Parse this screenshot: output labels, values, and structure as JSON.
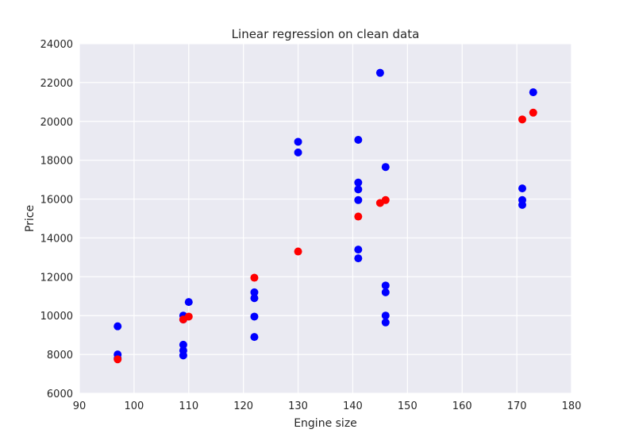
{
  "chart_data": {
    "type": "scatter",
    "title": "Linear regression on clean data",
    "xlabel": "Engine size",
    "ylabel": "Price",
    "xlim": [
      90,
      180
    ],
    "ylim": [
      6000,
      24000
    ],
    "xticks": [
      90,
      100,
      110,
      120,
      130,
      140,
      150,
      160,
      170,
      180
    ],
    "yticks": [
      6000,
      8000,
      10000,
      12000,
      14000,
      16000,
      18000,
      20000,
      22000,
      24000
    ],
    "grid": true,
    "series": [
      {
        "color": "#0000ff",
        "points": [
          [
            97,
            9450
          ],
          [
            97,
            8000
          ],
          [
            97,
            7800
          ],
          [
            109,
            10000
          ],
          [
            109,
            9800
          ],
          [
            109,
            8500
          ],
          [
            109,
            8200
          ],
          [
            109,
            7950
          ],
          [
            110,
            10700
          ],
          [
            122,
            11200
          ],
          [
            122,
            10900
          ],
          [
            122,
            9950
          ],
          [
            122,
            8900
          ],
          [
            130,
            18950
          ],
          [
            130,
            18400
          ],
          [
            141,
            19050
          ],
          [
            141,
            16850
          ],
          [
            141,
            16500
          ],
          [
            141,
            15950
          ],
          [
            141,
            13400
          ],
          [
            141,
            12950
          ],
          [
            145,
            22500
          ],
          [
            146,
            17650
          ],
          [
            146,
            11550
          ],
          [
            146,
            11200
          ],
          [
            146,
            10000
          ],
          [
            146,
            9650
          ],
          [
            171,
            16550
          ],
          [
            171,
            15950
          ],
          [
            171,
            15700
          ],
          [
            173,
            21500
          ]
        ]
      },
      {
        "color": "#ff0000",
        "points": [
          [
            97,
            7750
          ],
          [
            109,
            9800
          ],
          [
            110,
            9950
          ],
          [
            122,
            11950
          ],
          [
            130,
            13300
          ],
          [
            141,
            15100
          ],
          [
            145,
            15800
          ],
          [
            146,
            15950
          ],
          [
            171,
            20100
          ],
          [
            173,
            20450
          ]
        ]
      }
    ]
  }
}
